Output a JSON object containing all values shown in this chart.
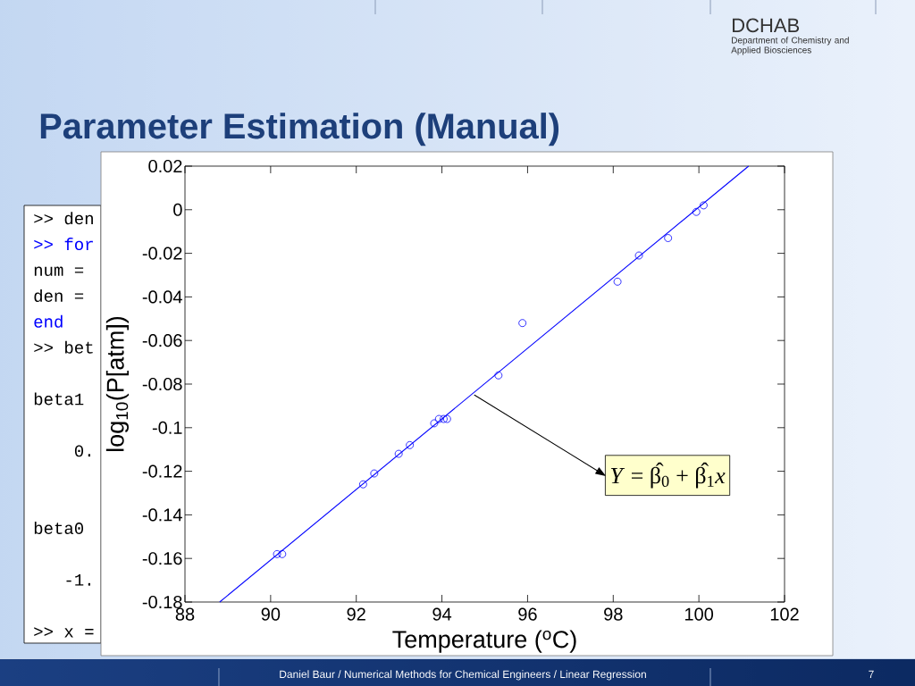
{
  "chart_data": {
    "type": "scatter",
    "title": "Parameter Estimation (Manual)",
    "xlabel": "Temperature ($^{o}$C)",
    "ylabel": "log$_{10}$(P[atm])",
    "series": [
      {
        "color": "#0000ff",
        "marker": "circle",
        "x": [
          90.15,
          90.27,
          92.16,
          92.42,
          92.99,
          93.25,
          93.82,
          93.93,
          94.04,
          94.12,
          95.32,
          95.88,
          98.1,
          98.6,
          99.28,
          99.94,
          100.11
        ],
        "values": [
          -0.158,
          -0.158,
          -0.126,
          -0.121,
          -0.112,
          -0.108,
          -0.098,
          -0.096,
          -0.096,
          -0.096,
          -0.076,
          -0.052,
          -0.033,
          -0.021,
          -0.013,
          -0.001,
          0.002
        ]
      },
      {
        "type": "line",
        "color": "#0000ff",
        "line_style": "solid",
        "x": [
          88.81,
          101.16
        ],
        "values": [
          -0.18,
          0.02
        ]
      }
    ],
    "xlim": [
      88,
      102
    ],
    "ylim": [
      -0.18,
      0.02
    ],
    "xticks": [
      88,
      90,
      92,
      94,
      96,
      98,
      100,
      102
    ],
    "yticks": [
      -0.18,
      -0.16,
      -0.14,
      -0.12,
      -0.1,
      -0.08,
      -0.06,
      -0.04,
      -0.02,
      0,
      0.02
    ],
    "annotations": [
      {
        "text": "*Y* = β̂$_{0}$ + β̂$_{1}$*x*",
        "x": 94.76,
        "y": -0.085
      },
      "DCHAB",
      "Department of Chemistry and Applied Biosciences",
      "Daniel Baur / Numerical Methods for Chemical Engineers / Linear Regression",
      "7",
      ">> den",
      ">> for",
      "num =",
      "den =",
      "end",
      ">> bet",
      "beta1",
      "0.",
      "beta0",
      "-1.",
      ">> x ="
    ]
  }
}
